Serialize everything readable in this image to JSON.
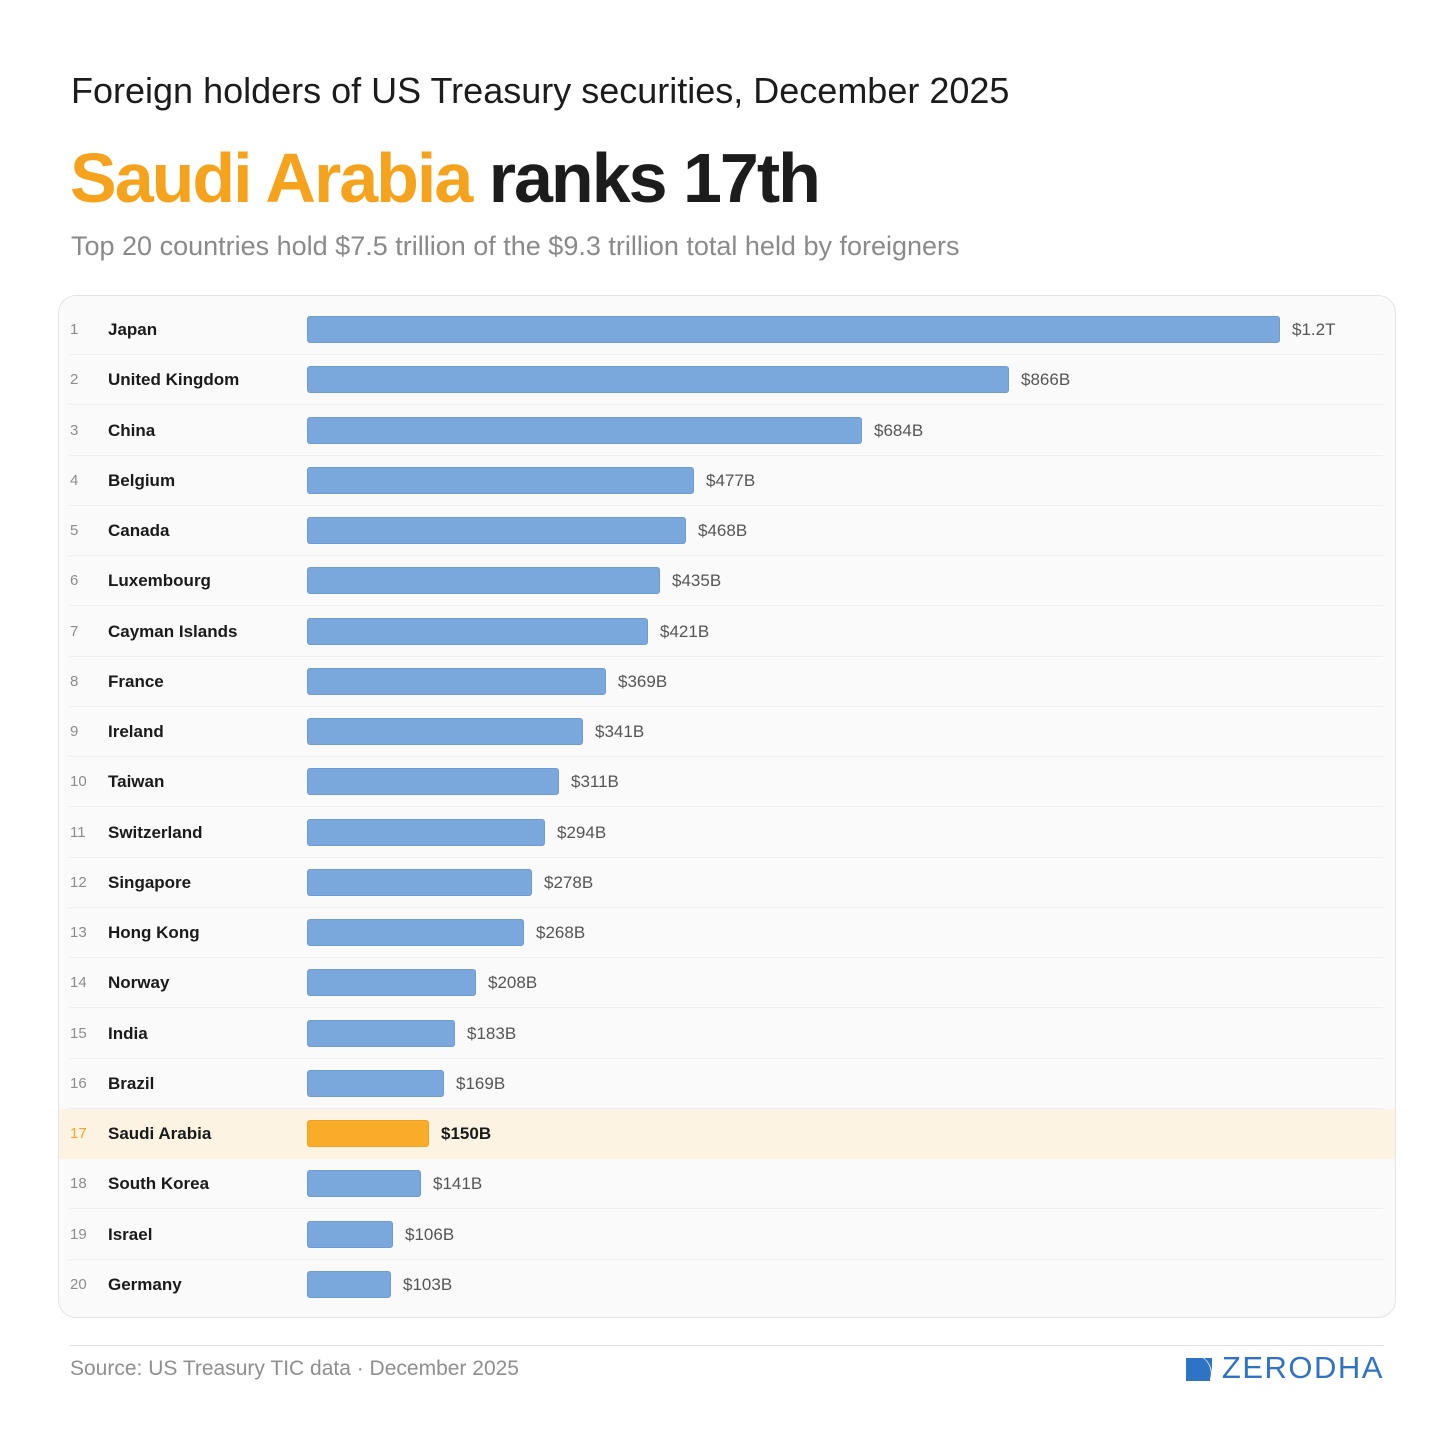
{
  "header": {
    "kicker": "Foreign holders of US Treasury securities, December 2025",
    "headline_highlight": "Saudi Arabia",
    "headline_rest": " ranks 17th",
    "subtitle": "Top 20 countries hold $7.5 trillion of the $9.3 trillion total held by foreigners"
  },
  "footer": {
    "source": "Source: US Treasury TIC data · December 2025",
    "brand": "ZERODHA"
  },
  "colors": {
    "bar": "#7aa7dc",
    "highlight_bar": "#f9ab2a",
    "highlight_row": "#fdf3e3",
    "headline_accent": "#f5a31c",
    "brand": "#2f73c5"
  },
  "chart_data": {
    "type": "bar",
    "orientation": "horizontal",
    "title": "Saudi Arabia ranks 17th",
    "subtitle": "Top 20 countries hold $7.5 trillion of the $9.3 trillion total held by foreigners",
    "unit": "USD billions",
    "xlim": [
      0,
      1200
    ],
    "highlight": "Saudi Arabia",
    "rows": [
      {
        "rank": "1",
        "country": "Japan",
        "value": 1200,
        "label": "$1.2T"
      },
      {
        "rank": "2",
        "country": "United Kingdom",
        "value": 866,
        "label": "$866B"
      },
      {
        "rank": "3",
        "country": "China",
        "value": 684,
        "label": "$684B"
      },
      {
        "rank": "4",
        "country": "Belgium",
        "value": 477,
        "label": "$477B"
      },
      {
        "rank": "5",
        "country": "Canada",
        "value": 468,
        "label": "$468B"
      },
      {
        "rank": "6",
        "country": "Luxembourg",
        "value": 435,
        "label": "$435B"
      },
      {
        "rank": "7",
        "country": "Cayman Islands",
        "value": 421,
        "label": "$421B"
      },
      {
        "rank": "8",
        "country": "France",
        "value": 369,
        "label": "$369B"
      },
      {
        "rank": "9",
        "country": "Ireland",
        "value": 341,
        "label": "$341B"
      },
      {
        "rank": "10",
        "country": "Taiwan",
        "value": 311,
        "label": "$311B"
      },
      {
        "rank": "11",
        "country": "Switzerland",
        "value": 294,
        "label": "$294B"
      },
      {
        "rank": "12",
        "country": "Singapore",
        "value": 278,
        "label": "$278B"
      },
      {
        "rank": "13",
        "country": "Hong Kong",
        "value": 268,
        "label": "$268B"
      },
      {
        "rank": "14",
        "country": "Norway",
        "value": 208,
        "label": "$208B"
      },
      {
        "rank": "15",
        "country": "India",
        "value": 183,
        "label": "$183B"
      },
      {
        "rank": "16",
        "country": "Brazil",
        "value": 169,
        "label": "$169B"
      },
      {
        "rank": "17",
        "country": "Saudi Arabia",
        "value": 150,
        "label": "$150B"
      },
      {
        "rank": "18",
        "country": "South Korea",
        "value": 141,
        "label": "$141B"
      },
      {
        "rank": "19",
        "country": "Israel",
        "value": 106,
        "label": "$106B"
      },
      {
        "rank": "20",
        "country": "Germany",
        "value": 103,
        "label": "$103B"
      }
    ]
  }
}
